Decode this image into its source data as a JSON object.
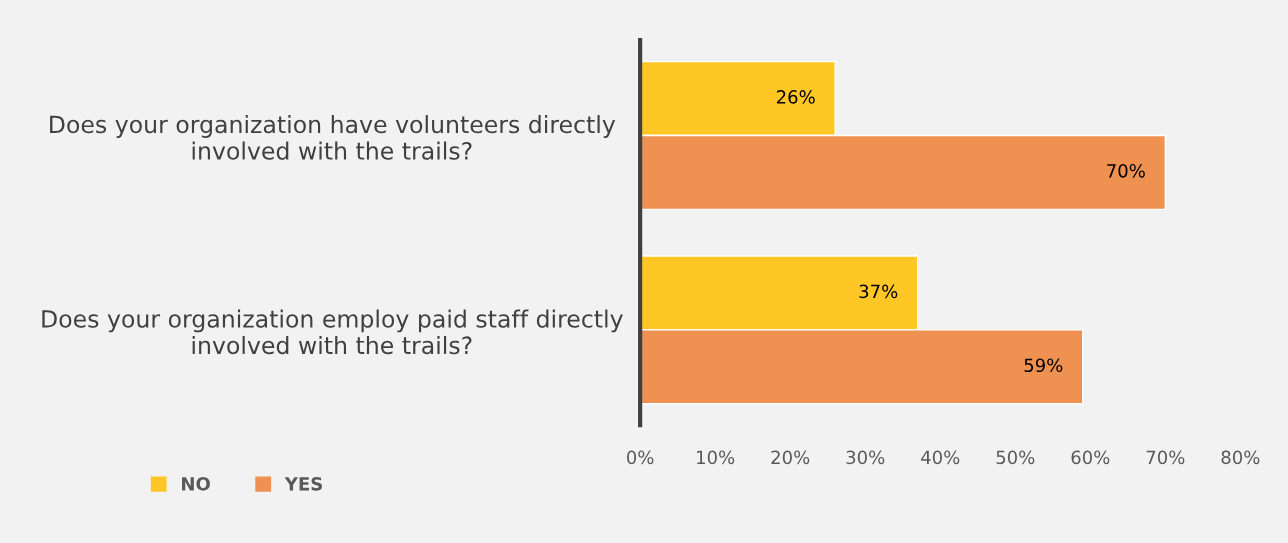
{
  "chart_data": {
    "type": "bar",
    "orientation": "horizontal",
    "categories": [
      "Does your organization have volunteers directly\ninvolved with the trails?",
      "Does your organization employ paid staff directly\ninvolved with the trails?"
    ],
    "series": [
      {
        "name": "NO",
        "color": "#ffc726",
        "values": [
          26,
          37
        ],
        "value_labels": [
          "26%",
          "37%"
        ]
      },
      {
        "name": "YES",
        "color": "#ef9150",
        "values": [
          70,
          59
        ],
        "value_labels": [
          "70%",
          "59%"
        ]
      }
    ],
    "xlim": [
      0,
      80
    ],
    "xticks": [
      {
        "value": 0,
        "label": "0%"
      },
      {
        "value": 10,
        "label": "10%"
      },
      {
        "value": 20,
        "label": "20%"
      },
      {
        "value": 30,
        "label": "30%"
      },
      {
        "value": 40,
        "label": "40%"
      },
      {
        "value": 50,
        "label": "50%"
      },
      {
        "value": 60,
        "label": "60%"
      },
      {
        "value": 70,
        "label": "70%"
      },
      {
        "value": 80,
        "label": "80%"
      }
    ],
    "grid": false,
    "legend": "bottom left"
  }
}
